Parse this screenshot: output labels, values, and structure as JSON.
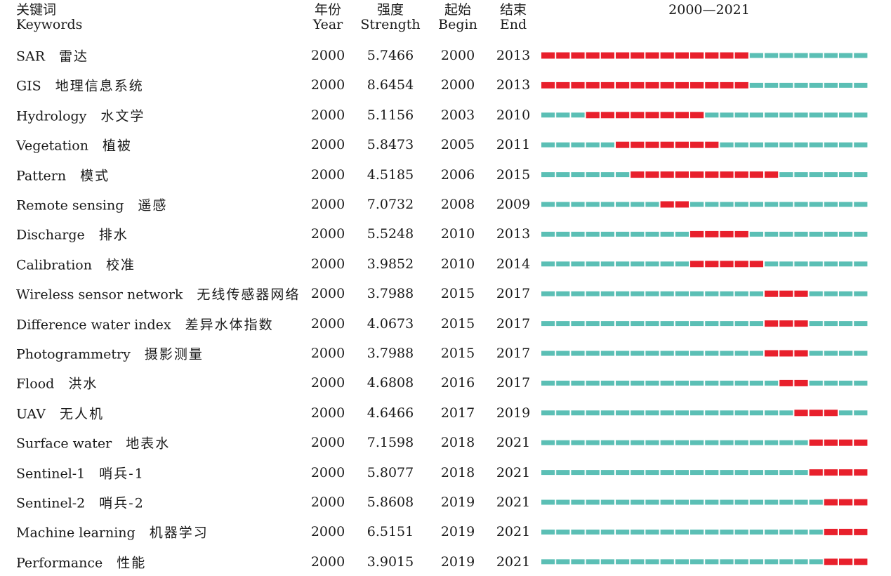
{
  "headers": {
    "keywords_zh": "关键词",
    "keywords_en": "Keywords",
    "year_zh": "年份",
    "year_en": "Year",
    "strength_zh": "强度",
    "strength_en": "Strength",
    "begin_zh": "起始",
    "begin_en": "Begin",
    "end_zh": "结束",
    "end_en": "End",
    "range": "2000—2021"
  },
  "colors": {
    "burst": "#e8202c",
    "baseline": "#5bbfb5"
  },
  "chart_data": {
    "type": "table",
    "timeline": {
      "start": 2000,
      "end": 2021
    },
    "columns": [
      "Keywords",
      "Year",
      "Strength",
      "Begin",
      "End"
    ],
    "rows": [
      {
        "en": "SAR",
        "zh": "雷达",
        "year": "2000",
        "strength": "5.7466",
        "begin": "2000",
        "end": "2013"
      },
      {
        "en": "GIS",
        "zh": "地理信息系统",
        "year": "2000",
        "strength": "8.6454",
        "begin": "2000",
        "end": "2013"
      },
      {
        "en": "Hydrology",
        "zh": "水文学",
        "year": "2000",
        "strength": "5.1156",
        "begin": "2003",
        "end": "2010"
      },
      {
        "en": "Vegetation",
        "zh": "植被",
        "year": "2000",
        "strength": "5.8473",
        "begin": "2005",
        "end": "2011"
      },
      {
        "en": "Pattern",
        "zh": "模式",
        "year": "2000",
        "strength": "4.5185",
        "begin": "2006",
        "end": "2015"
      },
      {
        "en": "Remote sensing",
        "zh": "遥感",
        "year": "2000",
        "strength": "7.0732",
        "begin": "2008",
        "end": "2009"
      },
      {
        "en": "Discharge",
        "zh": "排水",
        "year": "2000",
        "strength": "5.5248",
        "begin": "2010",
        "end": "2013"
      },
      {
        "en": "Calibration",
        "zh": "校准",
        "year": "2000",
        "strength": "3.9852",
        "begin": "2010",
        "end": "2014"
      },
      {
        "en": "Wireless sensor network",
        "zh": "无线传感器网络",
        "year": "2000",
        "strength": "3.7988",
        "begin": "2015",
        "end": "2017"
      },
      {
        "en": "Difference water index",
        "zh": "差异水体指数",
        "year": "2000",
        "strength": "4.0673",
        "begin": "2015",
        "end": "2017"
      },
      {
        "en": "Photogrammetry",
        "zh": "摄影测量",
        "year": "2000",
        "strength": "3.7988",
        "begin": "2015",
        "end": "2017"
      },
      {
        "en": "Flood",
        "zh": "洪水",
        "year": "2000",
        "strength": "4.6808",
        "begin": "2016",
        "end": "2017"
      },
      {
        "en": "UAV",
        "zh": "无人机",
        "year": "2000",
        "strength": "4.6466",
        "begin": "2017",
        "end": "2019"
      },
      {
        "en": "Surface water",
        "zh": "地表水",
        "year": "2000",
        "strength": "7.1598",
        "begin": "2018",
        "end": "2021"
      },
      {
        "en": "Sentinel-1",
        "zh": "哨兵-1",
        "year": "2000",
        "strength": "5.8077",
        "begin": "2018",
        "end": "2021"
      },
      {
        "en": "Sentinel-2",
        "zh": "哨兵-2",
        "year": "2000",
        "strength": "5.8608",
        "begin": "2019",
        "end": "2021"
      },
      {
        "en": "Machine learning",
        "zh": "机器学习",
        "year": "2000",
        "strength": "6.5151",
        "begin": "2019",
        "end": "2021"
      },
      {
        "en": "Performance",
        "zh": "性能",
        "year": "2000",
        "strength": "3.9015",
        "begin": "2019",
        "end": "2021"
      }
    ]
  }
}
